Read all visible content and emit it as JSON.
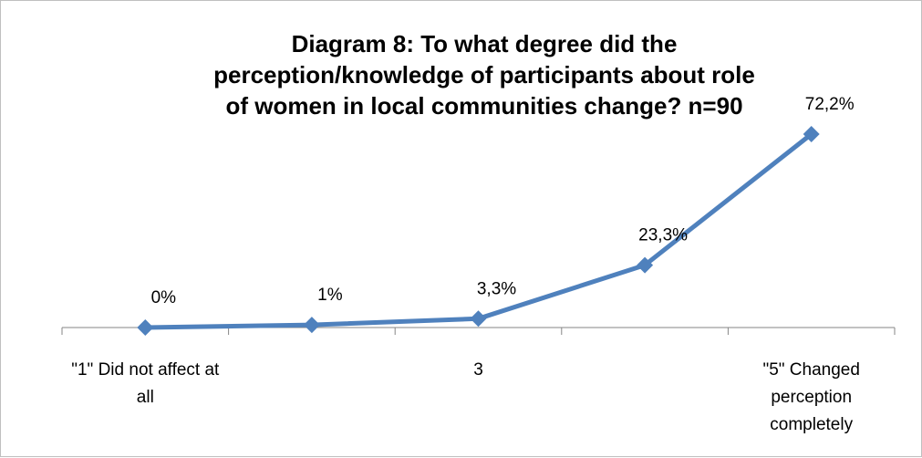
{
  "chart_data": {
    "type": "line",
    "title": "Diagram 8: To what degree did the perception/knowledge of participants about role of women in local communities change? n=90",
    "categories": [
      "\"1\" Did not affect at all",
      null,
      "3",
      null,
      "\"5\" Changed perception completely"
    ],
    "values": [
      0,
      1,
      3.3,
      23.3,
      72.2
    ],
    "value_labels": [
      "0%",
      "1%",
      "3,3%",
      "23,3%",
      "72,2%"
    ],
    "color": "#4f81bd"
  }
}
